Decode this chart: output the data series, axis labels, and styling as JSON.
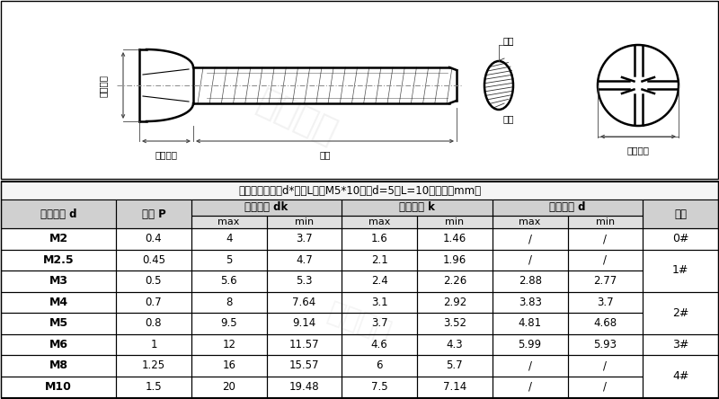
{
  "title_note": "尺寸标注：直径d*长度L，如M5*10，即d=5，L=10（单位：mm）",
  "rows": [
    [
      "M2",
      "0.4",
      "4",
      "3.7",
      "1.6",
      "1.46",
      "/",
      "/",
      "0#"
    ],
    [
      "M2.5",
      "0.45",
      "5",
      "4.7",
      "2.1",
      "1.96",
      "/",
      "/",
      "1#"
    ],
    [
      "M3",
      "0.5",
      "5.6",
      "5.3",
      "2.4",
      "2.26",
      "2.88",
      "2.77",
      ""
    ],
    [
      "M4",
      "0.7",
      "8",
      "7.64",
      "3.1",
      "2.92",
      "3.83",
      "3.7",
      "2#"
    ],
    [
      "M5",
      "0.8",
      "9.5",
      "9.14",
      "3.7",
      "3.52",
      "4.81",
      "4.68",
      ""
    ],
    [
      "M6",
      "1",
      "12",
      "11.57",
      "4.6",
      "4.3",
      "5.99",
      "5.93",
      "3#"
    ],
    [
      "M8",
      "1.25",
      "16",
      "15.57",
      "6",
      "5.7",
      "/",
      "/",
      "4#"
    ],
    [
      "M10",
      "1.5",
      "20",
      "19.48",
      "7.5",
      "7.14",
      "/",
      "/",
      ""
    ]
  ],
  "slot_merge": {
    "0#": [
      0
    ],
    "1#": [
      1,
      2
    ],
    "2#": [
      3,
      4
    ],
    "3#": [
      5
    ],
    "4#": [
      6,
      7
    ]
  },
  "bg_color": "#ffffff",
  "hdr_bg": "#d0d0d0",
  "hdr_bg2": "#e0e0e0",
  "border_color": "#000000",
  "text_color": "#000000",
  "dim_color": "#444444",
  "watermark": "上威紧固"
}
